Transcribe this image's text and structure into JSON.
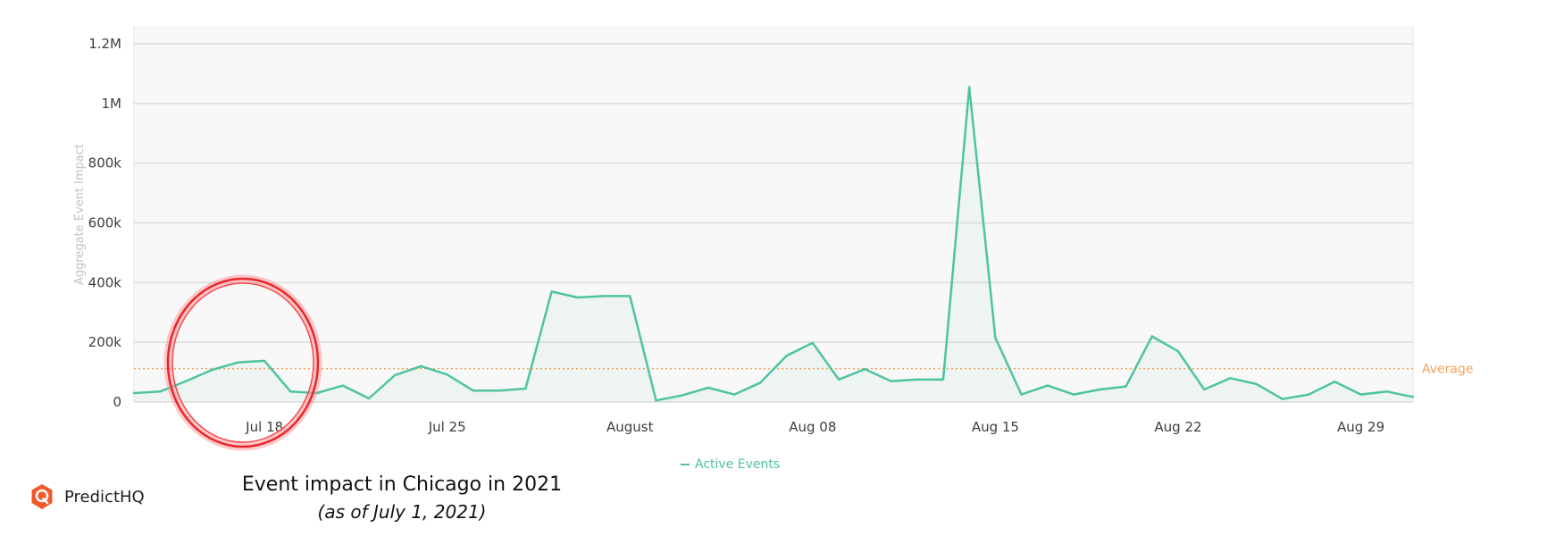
{
  "chart_data": {
    "type": "area",
    "ylabel": "Aggregate Event Impact",
    "ylim": [
      0,
      1250000
    ],
    "y_ticks": [
      {
        "value": 0,
        "label": "0"
      },
      {
        "value": 200000,
        "label": "200k"
      },
      {
        "value": 400000,
        "label": "400k"
      },
      {
        "value": 600000,
        "label": "600k"
      },
      {
        "value": 800000,
        "label": "800k"
      },
      {
        "value": 1000000,
        "label": "1M"
      },
      {
        "value": 1200000,
        "label": "1.2M"
      }
    ],
    "x_ticks": [
      "Jul 18",
      "Jul 25",
      "August",
      "Aug 08",
      "Aug 15",
      "Aug 22",
      "Aug 29"
    ],
    "x_start": "2021-07-13",
    "x_end": "2021-08-31",
    "grid": true,
    "series": [
      {
        "name": "Active Events",
        "color": "#4fc3a1",
        "x": [
          "2021-07-13",
          "2021-07-14",
          "2021-07-15",
          "2021-07-16",
          "2021-07-17",
          "2021-07-18",
          "2021-07-19",
          "2021-07-20",
          "2021-07-21",
          "2021-07-22",
          "2021-07-23",
          "2021-07-24",
          "2021-07-25",
          "2021-07-26",
          "2021-07-27",
          "2021-07-28",
          "2021-07-29",
          "2021-07-30",
          "2021-07-31",
          "2021-08-01",
          "2021-08-02",
          "2021-08-03",
          "2021-08-04",
          "2021-08-05",
          "2021-08-06",
          "2021-08-07",
          "2021-08-08",
          "2021-08-09",
          "2021-08-10",
          "2021-08-11",
          "2021-08-12",
          "2021-08-13",
          "2021-08-14",
          "2021-08-15",
          "2021-08-16",
          "2021-08-17",
          "2021-08-18",
          "2021-08-19",
          "2021-08-20",
          "2021-08-21",
          "2021-08-22",
          "2021-08-23",
          "2021-08-24",
          "2021-08-25",
          "2021-08-26",
          "2021-08-27",
          "2021-08-28",
          "2021-08-29",
          "2021-08-30",
          "2021-08-31"
        ],
        "values": [
          30000,
          35000,
          70000,
          108000,
          133000,
          138000,
          35000,
          30000,
          55000,
          12000,
          90000,
          120000,
          92000,
          38000,
          38000,
          45000,
          370000,
          350000,
          355000,
          355000,
          5000,
          22000,
          48000,
          25000,
          65000,
          155000,
          198000,
          75000,
          110000,
          70000,
          75000,
          75000,
          1055000,
          215000,
          25000,
          55000,
          25000,
          42000,
          52000,
          220000,
          170000,
          42000,
          80000,
          60000,
          10000,
          25000,
          68000,
          25000,
          35000,
          17000
        ]
      }
    ],
    "average": {
      "label": "Average",
      "value": 112000,
      "color": "#f5a15a"
    },
    "legend": {
      "label": "Active Events",
      "position": "bottom-center"
    },
    "annotation": {
      "type": "circle",
      "color": "#e8262c",
      "around": "Jul 18"
    }
  },
  "caption": {
    "line1": "Event impact in Chicago in 2021",
    "line2": "(as of July 1, 2021)"
  },
  "brand": {
    "name": "PredictHQ",
    "color": "#f05a28",
    "icon": "location-pin-icon"
  }
}
